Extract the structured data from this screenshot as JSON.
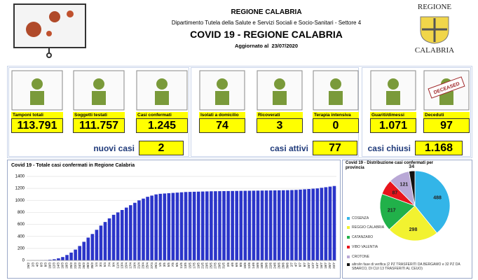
{
  "header": {
    "region": "REGIONE CALABRIA",
    "department": "Dipartimento Tutela della Salute e Servizi Sociali e Socio-Sanitari - Settore 4",
    "title": "COVID 19 - REGIONE CALABRIA",
    "updated": "Aggiornato al  23/07/2020",
    "logo_top": "REGIONE",
    "logo_bottom": "CALABRIA"
  },
  "tiles": {
    "groups": [
      {
        "items": [
          {
            "label": "Tamponi totali",
            "value": "113.791"
          },
          {
            "label": "Soggetti testati",
            "value": "111.757"
          },
          {
            "label": "Casi confermati",
            "value": "1.245"
          }
        ],
        "summary": {
          "label": "nuovi casi",
          "value": "2"
        }
      },
      {
        "items": [
          {
            "label": "Isolati a domicilio",
            "value": "74"
          },
          {
            "label": "Ricoverati",
            "value": "3"
          },
          {
            "label": "Terapia intensiva",
            "value": "0"
          }
        ],
        "summary": {
          "label": "casi attivi",
          "value": "77"
        }
      },
      {
        "items": [
          {
            "label": "Guariti/dimessi",
            "value": "1.071"
          },
          {
            "label": "Deceduti",
            "value": "97",
            "stamp": "DECEASED"
          }
        ],
        "summary": {
          "label": "casi chiusi",
          "value": "1.168"
        }
      }
    ]
  },
  "chart_data": [
    {
      "type": "bar",
      "title": "Covid 19 - Totale casi confermati in Regione Calabria",
      "color": "#2b35c9",
      "grid": true,
      "categories": [
        "29/2",
        "2/3",
        "4/3",
        "6/3",
        "8/3",
        "10/3",
        "12/3",
        "14/3",
        "16/3",
        "18/3",
        "20/3",
        "22/3",
        "24/3",
        "26/3",
        "28/3",
        "30/3",
        "1/4",
        "3/4",
        "5/4",
        "7/4",
        "9/4",
        "11/4",
        "13/4",
        "15/4",
        "17/4",
        "19/4",
        "21/4",
        "23/4",
        "25/4",
        "27/4",
        "29/4",
        "1/5",
        "3/5",
        "5/5",
        "7/5",
        "9/5",
        "11/5",
        "13/5",
        "15/5",
        "17/5",
        "19/5",
        "21/5",
        "23/5",
        "25/5",
        "27/5",
        "29/5",
        "31/5",
        "2/6",
        "4/6",
        "6/6",
        "8/6",
        "10/6",
        "12/6",
        "14/6",
        "16/6",
        "18/6",
        "20/6",
        "22/6",
        "24/6",
        "26/6",
        "28/6",
        "30/6",
        "2/7",
        "4/7",
        "6/7",
        "8/7",
        "10/7",
        "12/7",
        "14/7",
        "16/7",
        "18/7",
        "20/7",
        "22/7"
      ],
      "values": [
        0,
        1,
        1,
        3,
        5,
        11,
        19,
        34,
        56,
        90,
        130,
        180,
        240,
        310,
        380,
        440,
        510,
        580,
        640,
        700,
        760,
        800,
        840,
        880,
        920,
        960,
        1000,
        1030,
        1060,
        1080,
        1100,
        1110,
        1115,
        1120,
        1125,
        1130,
        1135,
        1140,
        1142,
        1144,
        1146,
        1148,
        1150,
        1152,
        1153,
        1154,
        1155,
        1156,
        1157,
        1158,
        1159,
        1160,
        1161,
        1162,
        1163,
        1164,
        1165,
        1166,
        1167,
        1168,
        1169,
        1170,
        1172,
        1175,
        1180,
        1185,
        1190,
        1195,
        1200,
        1210,
        1220,
        1230,
        1240
      ],
      "ylim": [
        0,
        1400
      ],
      "yticks": [
        0,
        200,
        400,
        600,
        800,
        1000,
        1200,
        1400
      ]
    },
    {
      "type": "pie",
      "title": "Covid 19 - Distribuzione casi confermati per provincia",
      "categories": [
        "COSENZA",
        "REGGIO CALABRIA",
        "CATANZARO",
        "VIBO VALENTIA",
        "CROTONE",
        "altro/in fase di verifica (2 PZ TRASFERITI DA BERGAMO e 32 PZ DA SBARCO, DI CUI 13 TRASFERITI AL CEUO)"
      ],
      "values": [
        488,
        298,
        217,
        87,
        121,
        34
      ],
      "colors": [
        "#33b5e8",
        "#f2f230",
        "#21b14a",
        "#e8141c",
        "#b9a8d6",
        "#111111"
      ]
    }
  ]
}
